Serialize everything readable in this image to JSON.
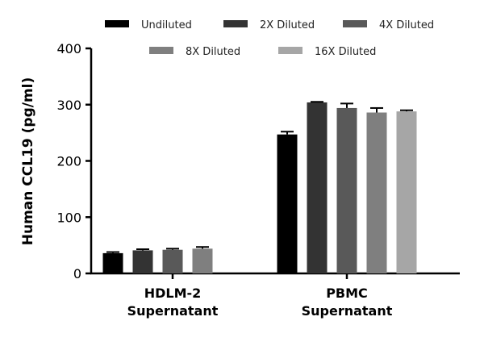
{
  "chart_data": {
    "type": "bar",
    "title": "",
    "xlabel": "",
    "ylabel": "Human CCL19 (pg/ml)",
    "ylim": [
      0,
      400
    ],
    "yticks": [
      0,
      100,
      200,
      300,
      400
    ],
    "categories": [
      [
        "HDLM-2",
        "Supernatant"
      ],
      [
        "PBMC",
        "Supernatant"
      ]
    ],
    "series": [
      {
        "name": "Undiluted",
        "color": "#000000",
        "values": [
          36,
          247
        ],
        "errors": [
          2,
          5
        ]
      },
      {
        "name": "2X Diluted",
        "color": "#333333",
        "values": [
          41,
          304
        ],
        "errors": [
          2,
          1
        ]
      },
      {
        "name": "4X Diluted",
        "color": "#595959",
        "values": [
          42,
          294
        ],
        "errors": [
          2,
          8
        ]
      },
      {
        "name": "8X Diluted",
        "color": "#7f7f7f",
        "values": [
          44,
          286
        ],
        "errors": [
          3,
          8
        ]
      },
      {
        "name": "16X Diluted",
        "color": "#a6a6a6",
        "values": [
          0,
          288
        ],
        "errors": [
          0,
          2
        ]
      }
    ],
    "legend_position": "top"
  }
}
